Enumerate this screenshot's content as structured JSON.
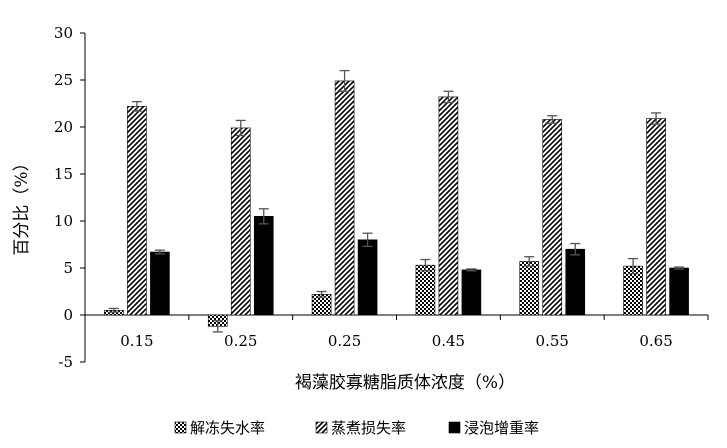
{
  "chart_data": {
    "type": "bar",
    "title": "",
    "xlabel": "褐藻胶寡糖脂质体浓度（%）",
    "ylabel": "百分比（%）",
    "categories": [
      "0.15",
      "0.25",
      "0.25",
      "0.45",
      "0.55",
      "0.65"
    ],
    "ylim": [
      -5,
      30
    ],
    "yticks": [
      -5,
      0,
      5,
      10,
      15,
      20,
      25,
      30
    ],
    "grid": false,
    "legend_position": "bottom",
    "error_bars": true,
    "series": [
      {
        "name": "解冻失水率",
        "pattern": "dots",
        "values": [
          0.5,
          -1.2,
          2.2,
          5.3,
          5.7,
          5.2
        ],
        "errors": [
          0.2,
          0.6,
          0.3,
          0.6,
          0.5,
          0.8
        ]
      },
      {
        "name": "蒸煮损失率",
        "pattern": "diagonal-hatch",
        "values": [
          22.2,
          19.9,
          24.9,
          23.2,
          20.8,
          20.9
        ],
        "errors": [
          0.5,
          0.8,
          1.1,
          0.6,
          0.4,
          0.6
        ]
      },
      {
        "name": "浸泡增重率",
        "pattern": "solid-black",
        "values": [
          6.7,
          10.5,
          8.0,
          4.8,
          7.0,
          5.0
        ],
        "errors": [
          0.2,
          0.8,
          0.7,
          0.1,
          0.6,
          0.1
        ]
      }
    ]
  }
}
